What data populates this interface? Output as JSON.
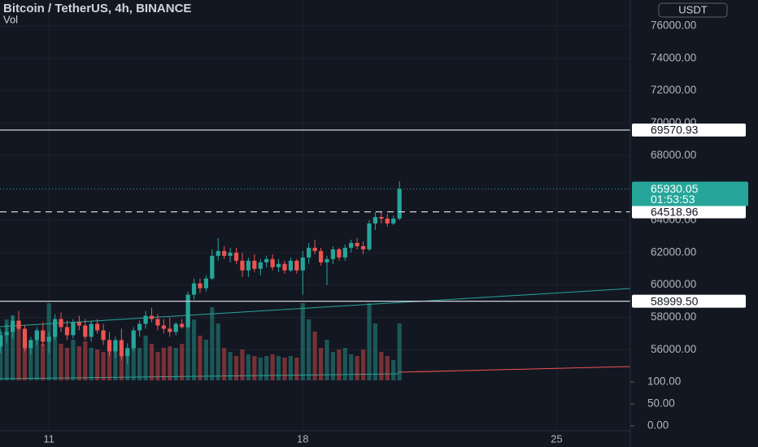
{
  "chart_data": {
    "type": "candlestick",
    "title": "Bitcoin / TetherUS, 4h, BINANCE",
    "subtitle": "Vol",
    "currency": "USDT",
    "x": [
      0,
      1,
      2,
      3,
      4,
      5,
      6,
      7,
      8,
      9,
      10,
      11,
      12,
      13,
      14,
      15,
      16,
      17,
      18,
      19,
      20,
      21,
      22,
      23,
      24,
      25,
      26,
      27,
      28,
      29,
      30,
      31,
      32,
      33,
      34,
      35,
      36,
      37,
      38,
      39,
      40,
      41,
      42,
      43,
      44,
      45,
      46,
      47,
      48,
      49,
      50,
      51,
      52,
      53,
      54,
      55,
      56,
      57,
      58,
      59,
      60,
      61,
      62,
      63,
      64,
      65,
      66
    ],
    "open": [
      56200,
      56900,
      57100,
      57800,
      57300,
      56100,
      56600,
      57200,
      56500,
      56800,
      57900,
      57400,
      56900,
      57700,
      57500,
      56800,
      57600,
      57200,
      56600,
      55900,
      56600,
      55600,
      56100,
      57200,
      57600,
      58100,
      57900,
      57500,
      57300,
      57100,
      57600,
      57400,
      59400,
      60100,
      59800,
      60400,
      61800,
      62100,
      61800,
      62000,
      61500,
      60900,
      61500,
      61000,
      61400,
      61600,
      61100,
      61300,
      60900,
      61500,
      60900,
      61700,
      62300,
      62100,
      61400,
      61600,
      62200,
      61700,
      62300,
      62600,
      62400,
      62200,
      63800,
      64200,
      64100,
      63800,
      64100
    ],
    "high": [
      57300,
      57600,
      58100,
      58400,
      57500,
      56800,
      57400,
      57700,
      57100,
      58200,
      58300,
      57800,
      57900,
      58100,
      57900,
      57800,
      57900,
      57600,
      57100,
      56800,
      57300,
      56400,
      57400,
      57800,
      58400,
      58600,
      58200,
      57900,
      58000,
      57700,
      57900,
      59600,
      60400,
      60400,
      60600,
      62200,
      62900,
      62400,
      62300,
      62300,
      62000,
      61700,
      61900,
      61600,
      61800,
      61900,
      61600,
      61500,
      61700,
      61600,
      62100,
      62600,
      62800,
      62300,
      61800,
      62400,
      62300,
      62500,
      62800,
      62900,
      62700,
      64000,
      64500,
      64500,
      64400,
      64300,
      66400
    ],
    "low": [
      55800,
      56400,
      56700,
      57200,
      55900,
      55700,
      56300,
      56200,
      55800,
      56600,
      57100,
      56600,
      56700,
      57200,
      56600,
      56500,
      57000,
      56300,
      55600,
      55500,
      55400,
      55100,
      55900,
      56800,
      57300,
      57700,
      57200,
      57000,
      56800,
      56900,
      57300,
      57300,
      59100,
      59500,
      59600,
      60300,
      61500,
      61600,
      61400,
      61300,
      60500,
      60500,
      60800,
      60600,
      61100,
      60900,
      60800,
      60700,
      60800,
      60700,
      59400,
      61300,
      61900,
      61200,
      60000,
      61300,
      61500,
      61500,
      62000,
      62200,
      61900,
      62100,
      63400,
      63800,
      63600,
      63700,
      64000
    ],
    "close": [
      56900,
      57100,
      57800,
      57300,
      56100,
      56600,
      57200,
      56500,
      56800,
      57900,
      57400,
      56900,
      57700,
      57500,
      56800,
      57600,
      57200,
      56600,
      55900,
      56600,
      55600,
      56100,
      57200,
      57600,
      58100,
      57900,
      57500,
      57300,
      57100,
      57600,
      57400,
      59400,
      60100,
      59800,
      60400,
      61800,
      62100,
      61800,
      62000,
      61500,
      60900,
      61500,
      61000,
      61400,
      61600,
      61100,
      61300,
      60900,
      61500,
      60900,
      61700,
      62300,
      62100,
      61400,
      61600,
      62200,
      61700,
      62300,
      62600,
      62400,
      62200,
      63800,
      64200,
      64100,
      63800,
      64100,
      65930.05
    ],
    "volume": [
      60,
      75,
      80,
      70,
      55,
      40,
      50,
      45,
      95,
      70,
      45,
      40,
      50,
      42,
      48,
      40,
      38,
      35,
      45,
      40,
      30,
      35,
      50,
      40,
      55,
      45,
      35,
      40,
      42,
      40,
      45,
      90,
      75,
      55,
      50,
      90,
      70,
      40,
      35,
      30,
      38,
      32,
      30,
      28,
      30,
      32,
      30,
      28,
      30,
      28,
      95,
      75,
      60,
      40,
      50,
      35,
      38,
      40,
      32,
      30,
      38,
      95,
      70,
      35,
      30,
      25,
      70
    ],
    "up_color": "#26a69a",
    "down_color": "#ef5350",
    "xlim": [
      -0.1,
      104.2
    ],
    "xticks": [
      {
        "value": 8,
        "label": "11"
      },
      {
        "value": 50,
        "label": "18"
      },
      {
        "value": 92,
        "label": "25"
      }
    ],
    "ylim": [
      51000,
      77600
    ],
    "yticks": [
      {
        "value": 76000,
        "label": "76000.00"
      },
      {
        "value": 74000,
        "label": "74000.00"
      },
      {
        "value": 72000,
        "label": "72000.00"
      },
      {
        "value": 70000,
        "label": "70000.00"
      },
      {
        "value": 68000,
        "label": "68000.00"
      },
      {
        "value": 64000,
        "label": "64000.00"
      },
      {
        "value": 62000,
        "label": "62000.00"
      },
      {
        "value": 60000,
        "label": "60000.00"
      },
      {
        "value": 58000,
        "label": "58000.00"
      },
      {
        "value": 56000,
        "label": "56000.00"
      }
    ],
    "y2lim": [
      -11.1,
      103.7
    ],
    "y2ticks": [
      {
        "value": 100,
        "label": "100.00"
      },
      {
        "value": 50,
        "label": "50.00"
      },
      {
        "value": 0,
        "label": "0.00"
      }
    ],
    "vlim": [
      0,
      130
    ],
    "levels": [
      69570.93,
      {
        "value": 58999.5,
        "label": "58999.50"
      },
      64518.96
    ],
    "last_price": 65930.05,
    "countdown": "01:53:53",
    "trendlines": [
      {
        "color": "#26a69a",
        "x": [
          -0.1,
          104.2
        ],
        "y": [
          57424,
          59783
        ]
      },
      {
        "color": "#26a69a",
        "x": [
          -0.1,
          65.8
        ],
        "y": [
          54211,
          54513
        ]
      },
      {
        "color": "#ef5350",
        "x": [
          65.8,
          104.2
        ],
        "y": [
          54613,
          54964
        ]
      }
    ],
    "grid": true
  }
}
